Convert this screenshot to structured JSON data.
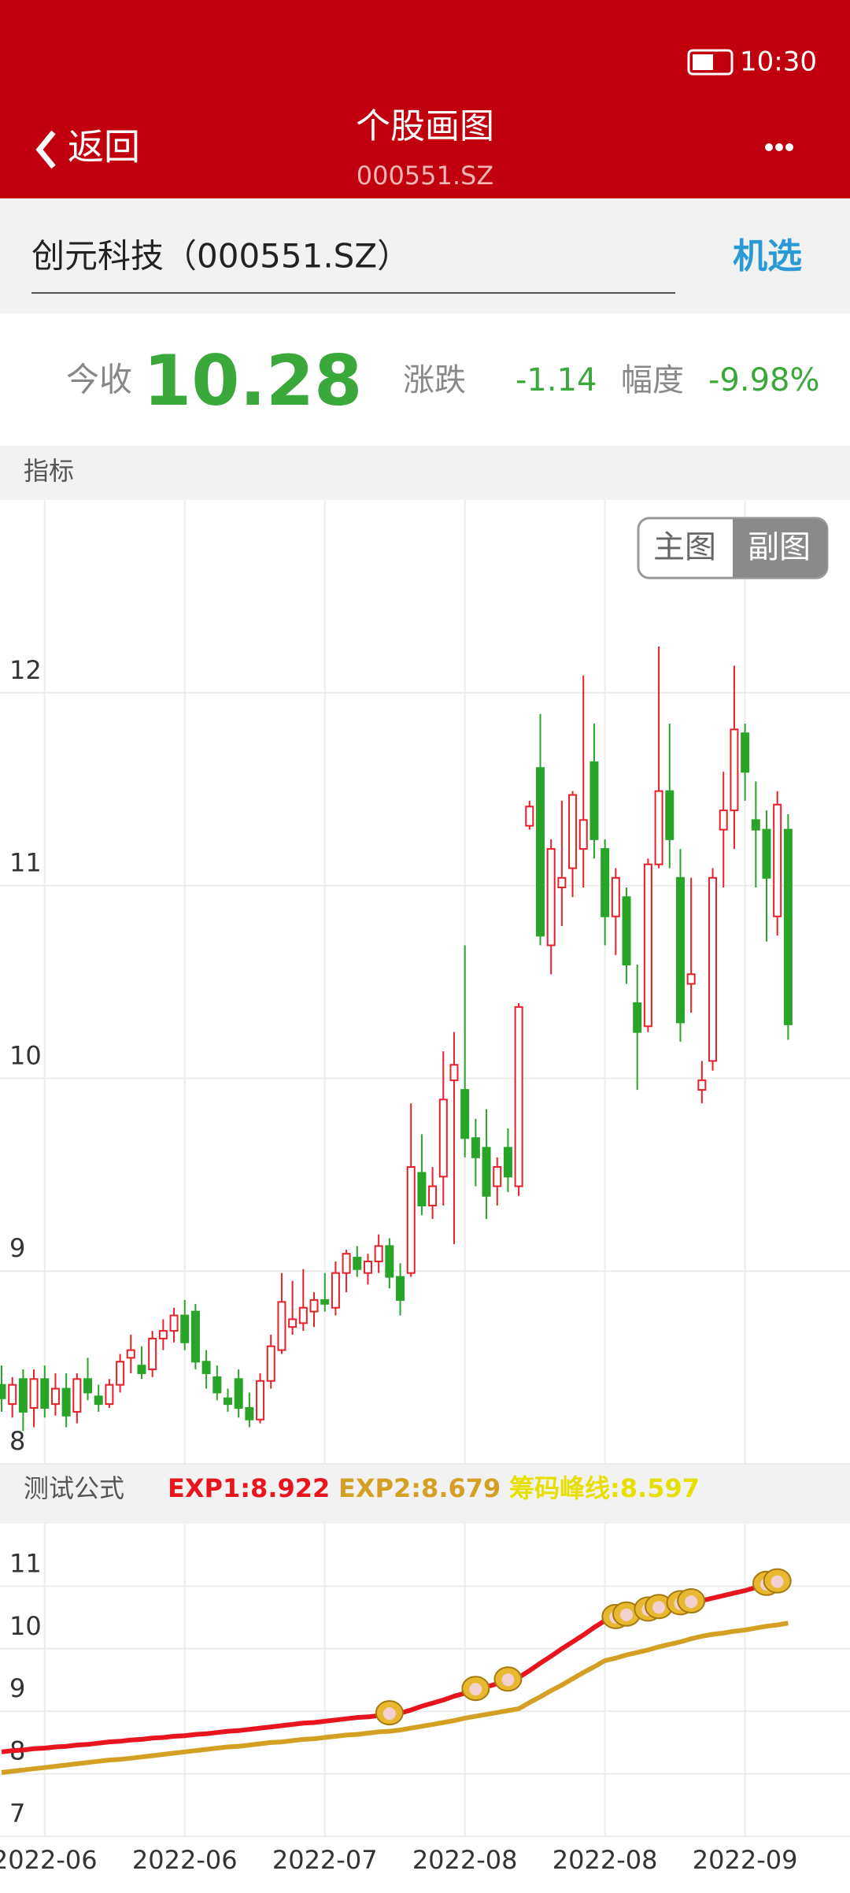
{
  "status_bar": {
    "time": "10:30"
  },
  "header": {
    "back": "返回",
    "title": "个股画图",
    "subtitle": "000551.SZ"
  },
  "search": {
    "query": "创元科技（000551.SZ）",
    "button": "机选"
  },
  "quote": {
    "close_label": "今收",
    "close": "10.28",
    "change_label": "涨跌",
    "change": "-1.14",
    "pct_label": "幅度",
    "pct": "-9.98%"
  },
  "section_label": "指标",
  "chart_data": [
    {
      "type": "candlestick",
      "buttons": [
        "主图",
        "副图"
      ],
      "up_color": "#e8202a",
      "down_color": "#28a428",
      "ylim": [
        8,
        13
      ],
      "yticks": [
        8,
        9,
        10,
        11,
        12
      ],
      "grid": true,
      "open": [
        8.41,
        8.31,
        8.44,
        8.29,
        8.44,
        8.31,
        8.39,
        8.27,
        8.44,
        8.35,
        8.31,
        8.41,
        8.55,
        8.51,
        8.49,
        8.65,
        8.69,
        8.77,
        8.79,
        8.53,
        8.45,
        8.34,
        8.44,
        8.29,
        8.23,
        8.43,
        8.59,
        8.71,
        8.73,
        8.79,
        8.85,
        8.81,
        8.99,
        9.07,
        8.99,
        9.05,
        9.13,
        8.97,
        8.99,
        9.51,
        9.34,
        9.49,
        9.99,
        9.94,
        9.69,
        9.64,
        9.44,
        9.64,
        9.44,
        11.31,
        11.61,
        10.69,
        10.99,
        11.09,
        11.19,
        11.64,
        11.19,
        10.84,
        10.94,
        10.39,
        10.27,
        11.11,
        11.49,
        11.04,
        10.49,
        9.94,
        10.09,
        11.29,
        11.39,
        11.79,
        11.34,
        11.29,
        10.84,
        11.29
      ],
      "high": [
        8.51,
        8.45,
        8.49,
        8.49,
        8.51,
        8.47,
        8.47,
        8.47,
        8.55,
        8.41,
        8.44,
        8.57,
        8.67,
        8.61,
        8.69,
        8.75,
        8.81,
        8.85,
        8.83,
        8.59,
        8.51,
        8.39,
        8.49,
        8.37,
        8.47,
        8.67,
        8.99,
        8.95,
        9.01,
        8.89,
        8.99,
        9.05,
        9.11,
        9.13,
        9.09,
        9.19,
        9.17,
        9.04,
        9.87,
        9.71,
        9.54,
        10.14,
        10.24,
        10.69,
        9.79,
        9.84,
        9.59,
        9.74,
        10.39,
        11.44,
        11.89,
        11.24,
        11.44,
        11.49,
        12.09,
        11.84,
        11.24,
        11.09,
        10.99,
        10.59,
        11.14,
        12.24,
        11.84,
        11.19,
        11.04,
        10.09,
        11.09,
        11.59,
        12.14,
        11.84,
        11.54,
        11.39,
        11.49,
        11.37
      ],
      "low": [
        8.27,
        8.24,
        8.17,
        8.19,
        8.24,
        8.25,
        8.19,
        8.21,
        8.33,
        8.27,
        8.29,
        8.37,
        8.47,
        8.44,
        8.45,
        8.59,
        8.63,
        8.59,
        8.49,
        8.39,
        8.33,
        8.27,
        8.24,
        8.19,
        8.21,
        8.39,
        8.57,
        8.67,
        8.69,
        8.71,
        8.79,
        8.77,
        8.89,
        8.97,
        8.93,
        8.99,
        8.91,
        8.77,
        8.97,
        9.29,
        9.27,
        9.34,
        9.14,
        9.59,
        9.44,
        9.27,
        9.34,
        9.41,
        9.39,
        11.29,
        10.69,
        10.54,
        10.79,
        10.94,
        10.99,
        11.14,
        10.69,
        10.64,
        10.49,
        9.94,
        10.24,
        11.09,
        11.09,
        10.19,
        10.34,
        9.87,
        10.04,
        10.99,
        11.19,
        11.44,
        10.99,
        10.71,
        10.74,
        10.2
      ],
      "close": [
        8.34,
        8.41,
        8.27,
        8.44,
        8.29,
        8.39,
        8.25,
        8.44,
        8.37,
        8.31,
        8.41,
        8.53,
        8.59,
        8.47,
        8.65,
        8.69,
        8.77,
        8.63,
        8.53,
        8.47,
        8.37,
        8.31,
        8.29,
        8.23,
        8.43,
        8.61,
        8.84,
        8.75,
        8.81,
        8.85,
        8.83,
        8.99,
        9.09,
        9.01,
        9.05,
        9.13,
        8.97,
        8.85,
        9.54,
        9.34,
        9.44,
        9.89,
        10.07,
        9.69,
        9.59,
        9.39,
        9.54,
        9.49,
        10.37,
        11.41,
        10.74,
        11.19,
        11.04,
        11.47,
        11.34,
        11.24,
        10.84,
        11.04,
        10.59,
        10.24,
        11.11,
        11.49,
        11.24,
        10.29,
        10.54,
        9.99,
        11.04,
        11.39,
        11.81,
        11.59,
        11.29,
        11.04,
        11.42,
        10.28
      ]
    },
    {
      "type": "line",
      "title": "测试公式",
      "ylim": [
        7,
        12
      ],
      "yticks": [
        7,
        8,
        9,
        10,
        11
      ],
      "grid": true,
      "categories": [
        null,
        null,
        null,
        null,
        "2022-06",
        null,
        null,
        null,
        null,
        null,
        null,
        null,
        null,
        null,
        null,
        null,
        null,
        "2022-06",
        null,
        null,
        null,
        null,
        null,
        null,
        null,
        null,
        null,
        null,
        null,
        null,
        "2022-07",
        null,
        null,
        null,
        null,
        null,
        null,
        null,
        null,
        null,
        null,
        null,
        null,
        "2022-08",
        null,
        null,
        null,
        null,
        null,
        null,
        null,
        null,
        null,
        null,
        null,
        null,
        "2022-08",
        null,
        null,
        null,
        null,
        null,
        null,
        null,
        null,
        null,
        null,
        null,
        null,
        "2022-09",
        null,
        null,
        null,
        null
      ],
      "series": [
        {
          "name": "EXP1:8.922",
          "color": "#e8141e",
          "values": [
            8.35,
            8.37,
            8.38,
            8.4,
            8.41,
            8.43,
            8.44,
            8.46,
            8.47,
            8.49,
            8.51,
            8.52,
            8.54,
            8.55,
            8.57,
            8.58,
            8.6,
            8.61,
            8.63,
            8.64,
            8.66,
            8.68,
            8.69,
            8.71,
            8.73,
            8.75,
            8.77,
            8.79,
            8.81,
            8.82,
            8.84,
            8.86,
            8.88,
            8.9,
            8.91,
            8.93,
            8.95,
            8.97,
            9.02,
            9.08,
            9.13,
            9.18,
            9.24,
            9.29,
            9.34,
            9.39,
            9.44,
            9.49,
            9.54,
            9.65,
            9.77,
            9.88,
            10.0,
            10.11,
            10.22,
            10.34,
            10.45,
            10.49,
            10.53,
            10.57,
            10.61,
            10.65,
            10.68,
            10.71,
            10.74,
            10.77,
            10.81,
            10.85,
            10.89,
            10.93,
            10.98,
            11.02,
            11.06,
            11.1
          ]
        },
        {
          "name": "EXP2:8.679",
          "color": "#d4a024",
          "values": [
            8.02,
            8.04,
            8.06,
            8.08,
            8.1,
            8.12,
            8.14,
            8.16,
            8.18,
            8.2,
            8.22,
            8.23,
            8.25,
            8.27,
            8.29,
            8.31,
            8.33,
            8.35,
            8.37,
            8.39,
            8.41,
            8.43,
            8.44,
            8.46,
            8.48,
            8.5,
            8.51,
            8.53,
            8.55,
            8.56,
            8.58,
            8.6,
            8.62,
            8.63,
            8.65,
            8.67,
            8.68,
            8.7,
            8.73,
            8.76,
            8.79,
            8.82,
            8.85,
            8.89,
            8.92,
            8.95,
            8.98,
            9.01,
            9.04,
            9.14,
            9.23,
            9.33,
            9.42,
            9.52,
            9.62,
            9.71,
            9.81,
            9.85,
            9.9,
            9.94,
            9.98,
            10.03,
            10.07,
            10.11,
            10.16,
            10.2,
            10.23,
            10.25,
            10.28,
            10.3,
            10.33,
            10.36,
            10.38,
            10.41
          ]
        }
      ],
      "extra_legend": {
        "text": "筹码峰线:8.597",
        "color": "#e6e000"
      },
      "signals": [
        36,
        44,
        47,
        57,
        58,
        60,
        61,
        63,
        64,
        71,
        72
      ]
    }
  ]
}
